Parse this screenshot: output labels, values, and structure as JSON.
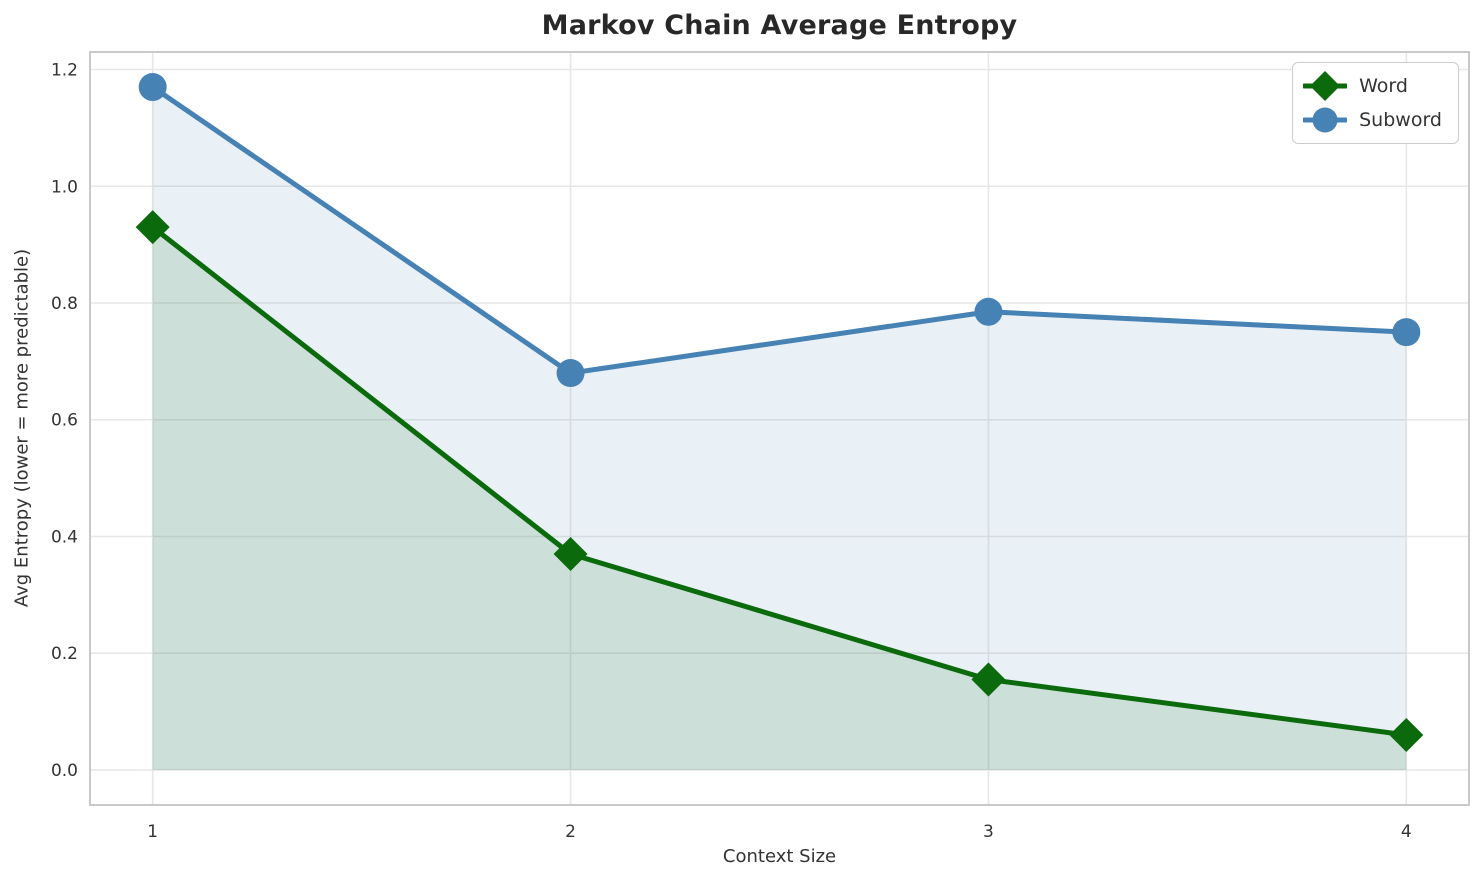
{
  "chart_data": {
    "type": "line",
    "title": "Markov Chain Average Entropy",
    "xlabel": "Context Size",
    "ylabel": "Avg Entropy (lower = more predictable)",
    "x": [
      1,
      2,
      3,
      4
    ],
    "xtick_labels": [
      "1",
      "2",
      "3",
      "4"
    ],
    "ytick_labels": [
      "0.0",
      "0.2",
      "0.4",
      "0.6",
      "0.8",
      "1.0",
      "1.2"
    ],
    "xlim": [
      0.85,
      4.15
    ],
    "ylim": [
      -0.06,
      1.23
    ],
    "grid": true,
    "legend_position": "upper right",
    "fill_baseline": 0,
    "series": [
      {
        "name": "Word",
        "values": [
          0.93,
          0.37,
          0.155,
          0.06
        ],
        "color": "#0b6a0b",
        "marker": "diamond",
        "fill_alpha": 0.12
      },
      {
        "name": "Subword",
        "values": [
          1.17,
          0.68,
          0.785,
          0.75
        ],
        "color": "#4682b4",
        "marker": "circle",
        "fill_alpha": 0.12
      }
    ],
    "style": {
      "grid_color": "#e7e7e7",
      "spine_color": "#c9c9c9",
      "tick_label_color": "#333333",
      "line_width": 5
    }
  }
}
